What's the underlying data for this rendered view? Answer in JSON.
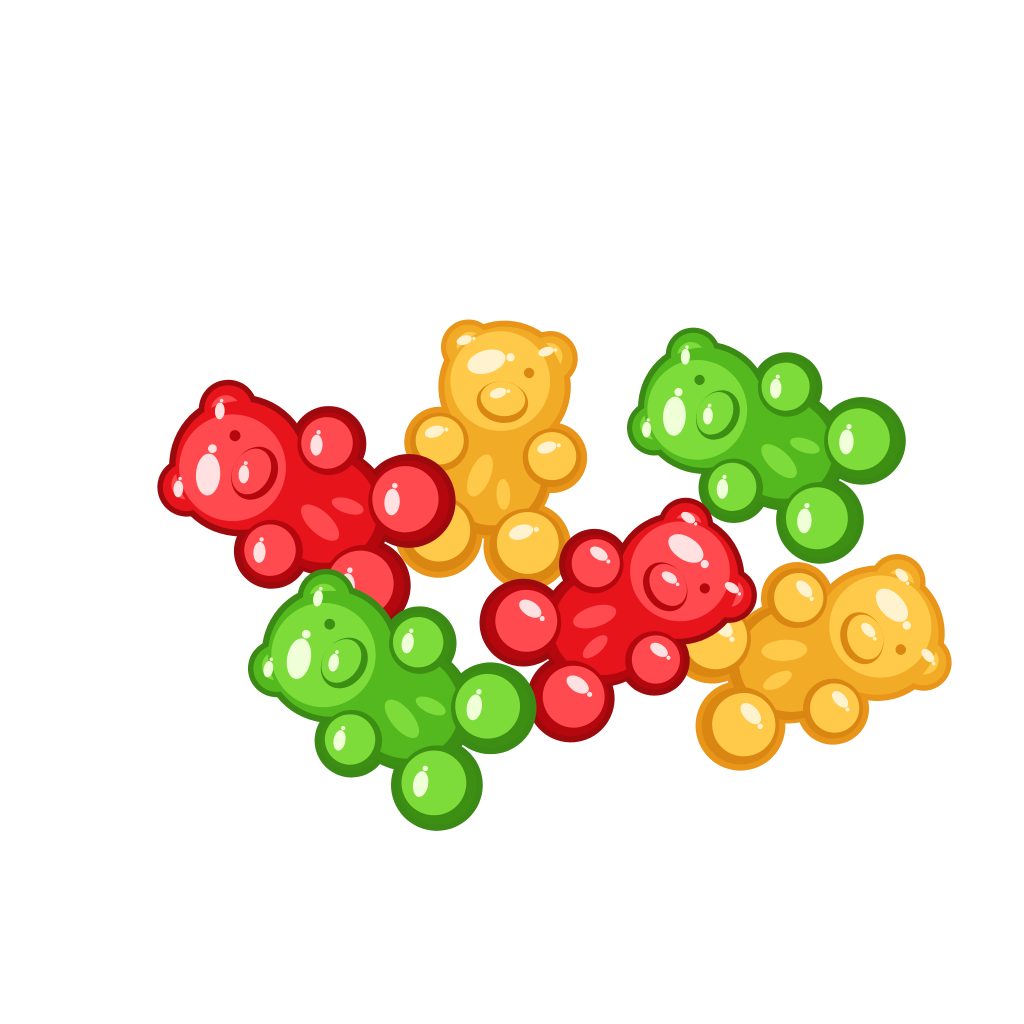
{
  "scene": {
    "background_color": "#ffffff",
    "subject": "gummy bears",
    "bear_count": 6
  },
  "palette": {
    "red": {
      "body": "#e8141b",
      "light": "#ff4a4f",
      "shade": "#b5080e",
      "outline": "#9c0a0e",
      "highlight": "#ffe1e1"
    },
    "yellow": {
      "body": "#f2ab27",
      "light": "#ffc94a",
      "shade": "#d98612",
      "outline": "#e8951a",
      "highlight": "#fff3cf"
    },
    "green": {
      "body": "#53b91f",
      "light": "#7ddc3a",
      "shade": "#3d8f14",
      "outline": "#3a8a15",
      "highlight": "#efffd8"
    }
  },
  "bears": [
    {
      "id": "red-bear-left",
      "color": "red",
      "icon": "gummy-bear-icon"
    },
    {
      "id": "yellow-bear-top",
      "color": "yellow",
      "icon": "gummy-bear-icon"
    },
    {
      "id": "green-bear-top-right",
      "color": "green",
      "icon": "gummy-bear-icon"
    },
    {
      "id": "red-bear-center",
      "color": "red",
      "icon": "gummy-bear-icon"
    },
    {
      "id": "green-bear-bottom",
      "color": "green",
      "icon": "gummy-bear-icon"
    },
    {
      "id": "yellow-bear-right",
      "color": "yellow",
      "icon": "gummy-bear-icon"
    }
  ]
}
